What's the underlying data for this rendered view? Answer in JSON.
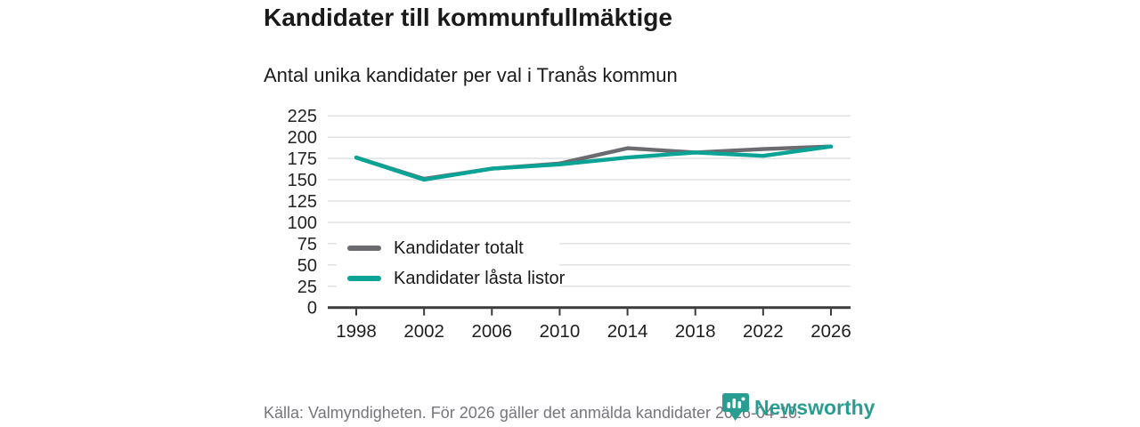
{
  "header": {
    "title": "Kandidater till kommunfullmäktige",
    "subtitle": "Antal unika kandidater per val i Tranås kommun"
  },
  "chart_data": {
    "type": "line",
    "title": "Kandidater till kommunfullmäktige",
    "subtitle": "Antal unika kandidater per val i Tranås kommun",
    "categories": [
      "1998",
      "2002",
      "2006",
      "2010",
      "2014",
      "2018",
      "2022",
      "2026"
    ],
    "series": [
      {
        "name": "Kandidater totalt",
        "color": "#6b6b70",
        "values": [
          176,
          151,
          163,
          169,
          187,
          182,
          186,
          189
        ]
      },
      {
        "name": "Kandidater låsta listor",
        "color": "#0aa396",
        "values": [
          176,
          150,
          163,
          168,
          176,
          182,
          178,
          189
        ]
      }
    ],
    "yticks": [
      0,
      25,
      50,
      75,
      100,
      125,
      150,
      175,
      200,
      225
    ],
    "ylim": [
      0,
      225
    ],
    "xlabel": "",
    "ylabel": "",
    "grid": true,
    "legend_position": "inside-left-middle",
    "colors": {
      "gridline": "#e3e3e3",
      "axis": "#3b3b3b",
      "tick_label": "#222222"
    }
  },
  "footer": {
    "source": "Källa: Valmyndigheten. För 2026 gäller det anmälda kandidater 2026-04-10.",
    "logo_text": "Newsworthy",
    "logo_color": "#2a9d93"
  }
}
